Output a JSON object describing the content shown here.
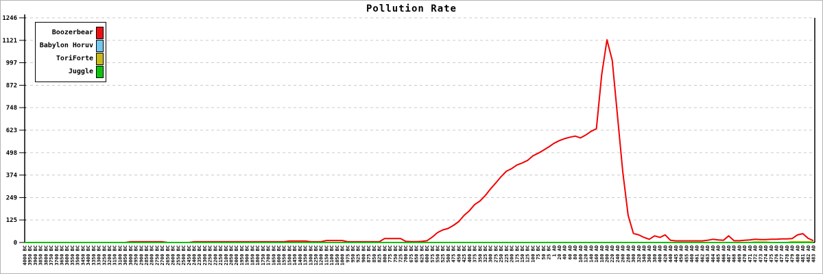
{
  "title": "Pollution Rate",
  "legend": {
    "items": [
      {
        "label": "Boozerbear",
        "color": "#ee1010"
      },
      {
        "label": "Babylon Horuv",
        "color": "#74c7f0"
      },
      {
        "label": "ToriForte",
        "color": "#c9b918"
      },
      {
        "label": "Juggle",
        "color": "#0cc40c"
      }
    ]
  },
  "chart_data": {
    "type": "line",
    "title": "Pollution Rate",
    "xlabel": "",
    "ylabel": "",
    "ylim": [
      0,
      1246
    ],
    "y_ticks": [
      0,
      125,
      249,
      374,
      498,
      623,
      748,
      872,
      997,
      1121,
      1246
    ],
    "grid": "horizontal-dashed",
    "legend_position": "top-left",
    "categories": [
      "4000 BC",
      "3950 BC",
      "3900 BC",
      "3850 BC",
      "3800 BC",
      "3750 BC",
      "3700 BC",
      "3650 BC",
      "3600 BC",
      "3550 BC",
      "3500 BC",
      "3450 BC",
      "3400 BC",
      "3350 BC",
      "3300 BC",
      "3250 BC",
      "3200 BC",
      "3150 BC",
      "3100 BC",
      "3050 BC",
      "3000 BC",
      "2950 BC",
      "2900 BC",
      "2850 BC",
      "2800 BC",
      "2750 BC",
      "2700 BC",
      "2650 BC",
      "2600 BC",
      "2550 BC",
      "2500 BC",
      "2450 BC",
      "2400 BC",
      "2350 BC",
      "2300 BC",
      "2250 BC",
      "2200 BC",
      "2150 BC",
      "2100 BC",
      "2050 BC",
      "2000 BC",
      "1950 BC",
      "1900 BC",
      "1850 BC",
      "1800 BC",
      "1750 BC",
      "1700 BC",
      "1650 BC",
      "1600 BC",
      "1550 BC",
      "1500 BC",
      "1450 BC",
      "1400 BC",
      "1350 BC",
      "1300 BC",
      "1250 BC",
      "1200 BC",
      "1150 BC",
      "1100 BC",
      "1050 BC",
      "1000 BC",
      "975 BC",
      "950 BC",
      "925 BC",
      "900 BC",
      "875 BC",
      "850 BC",
      "825 BC",
      "800 BC",
      "775 BC",
      "750 BC",
      "725 BC",
      "700 BC",
      "675 BC",
      "650 BC",
      "625 BC",
      "600 BC",
      "575 BC",
      "550 BC",
      "525 BC",
      "500 BC",
      "475 BC",
      "450 BC",
      "425 BC",
      "400 BC",
      "375 BC",
      "350 BC",
      "325 BC",
      "300 BC",
      "275 BC",
      "250 BC",
      "225 BC",
      "200 BC",
      "175 BC",
      "150 BC",
      "125 BC",
      "100 BC",
      "75 BC",
      "50 BC",
      "25 BC",
      "1 AD",
      "20 AD",
      "40 AD",
      "60 AD",
      "80 AD",
      "100 AD",
      "120 AD",
      "140 AD",
      "160 AD",
      "180 AD",
      "200 AD",
      "220 AD",
      "240 AD",
      "260 AD",
      "280 AD",
      "300 AD",
      "320 AD",
      "340 AD",
      "360 AD",
      "380 AD",
      "400 AD",
      "420 AD",
      "440 AD",
      "445 AD",
      "450 AD",
      "455 AD",
      "460 AD",
      "461 AD",
      "462 AD",
      "463 AD",
      "464 AD",
      "465 AD",
      "466 AD",
      "467 AD",
      "468 AD",
      "469 AD",
      "470 AD",
      "471 AD",
      "472 AD",
      "473 AD",
      "474 AD",
      "475 AD",
      "476 AD",
      "477 AD",
      "478 AD",
      "479 AD",
      "480 AD",
      "481 AD",
      "482 AD",
      "483 AD"
    ],
    "series": [
      {
        "name": "Boozerbear",
        "color": "#f20000",
        "values": [
          0,
          0,
          0,
          0,
          0,
          0,
          0,
          0,
          0,
          0,
          0,
          0,
          0,
          0,
          0,
          0,
          0,
          0,
          0,
          0,
          4,
          4,
          4,
          4,
          4,
          4,
          4,
          0,
          0,
          0,
          0,
          0,
          4,
          4,
          4,
          4,
          4,
          4,
          4,
          4,
          4,
          4,
          4,
          4,
          4,
          4,
          4,
          4,
          4,
          4,
          8,
          8,
          8,
          8,
          4,
          4,
          4,
          11,
          11,
          11,
          11,
          4,
          4,
          4,
          4,
          4,
          4,
          4,
          22,
          22,
          22,
          22,
          6,
          5,
          5,
          6,
          10,
          30,
          55,
          70,
          78,
          95,
          116,
          150,
          176,
          210,
          230,
          260,
          297,
          330,
          365,
          395,
          410,
          430,
          441,
          455,
          480,
          495,
          512,
          530,
          550,
          565,
          576,
          584,
          590,
          580,
          596,
          616,
          631,
          930,
          1124,
          1010,
          700,
          390,
          150,
          50,
          42,
          28,
          18,
          37,
          28,
          42,
          12,
          9,
          9,
          9,
          9,
          9,
          9,
          12,
          18,
          14,
          12,
          37,
          10,
          10,
          12,
          14,
          18,
          16,
          16,
          18,
          18,
          20,
          20,
          22,
          42,
          49,
          23,
          10
        ]
      },
      {
        "name": "Babylon Horuv",
        "color": "#74c7f0",
        "values": [
          0,
          0,
          0,
          0,
          0,
          0,
          0,
          0,
          0,
          0,
          0,
          0,
          0,
          0,
          0,
          0,
          0,
          0,
          0,
          0,
          0,
          0,
          0,
          0,
          0,
          0,
          0,
          0,
          0,
          0,
          0,
          0,
          0,
          0,
          0,
          0,
          0,
          0,
          0,
          0,
          0,
          0,
          0,
          0,
          0,
          0,
          0,
          0,
          0,
          0,
          0,
          0,
          0,
          0,
          0,
          0,
          0,
          0,
          0,
          0,
          0,
          0,
          0,
          0,
          0,
          0,
          0,
          0,
          0,
          0,
          0,
          0,
          0,
          0,
          0,
          0,
          0,
          0,
          0,
          0,
          0,
          0,
          0,
          0,
          0,
          0,
          0,
          0,
          0,
          0,
          0,
          0,
          0,
          0,
          0,
          0,
          0,
          0,
          0,
          0,
          0,
          0,
          0,
          0,
          0,
          0,
          0,
          0,
          0,
          0,
          0,
          0,
          0,
          0,
          0,
          0,
          0,
          0,
          0,
          0,
          0,
          0,
          0,
          0,
          0,
          0,
          0,
          0,
          0,
          0,
          0,
          0,
          0,
          0,
          0,
          0,
          0,
          0,
          0,
          0,
          0,
          0,
          0,
          0,
          0,
          0,
          0,
          0,
          0,
          0
        ]
      },
      {
        "name": "ToriForte",
        "color": "#c9b918",
        "values": [
          0,
          0,
          0,
          0,
          0,
          0,
          0,
          0,
          0,
          0,
          0,
          0,
          0,
          0,
          0,
          0,
          0,
          0,
          0,
          0,
          0,
          0,
          0,
          0,
          0,
          0,
          0,
          0,
          0,
          0,
          0,
          0,
          0,
          0,
          0,
          0,
          0,
          0,
          0,
          0,
          0,
          0,
          0,
          0,
          0,
          0,
          0,
          0,
          0,
          0,
          0,
          0,
          0,
          0,
          0,
          0,
          0,
          0,
          0,
          0,
          0,
          0,
          0,
          0,
          0,
          0,
          0,
          0,
          0,
          0,
          0,
          0,
          0,
          0,
          0,
          0,
          0,
          0,
          0,
          0,
          0,
          0,
          0,
          0,
          0,
          0,
          0,
          0,
          0,
          0,
          0,
          0,
          0,
          0,
          0,
          0,
          0,
          0,
          0,
          0,
          0,
          0,
          0,
          0,
          0,
          0,
          0,
          0,
          0,
          0,
          0,
          0,
          0,
          0,
          0,
          0,
          0,
          0,
          0,
          0,
          0,
          0,
          0,
          0,
          0,
          0,
          0,
          0,
          0,
          0,
          0,
          0,
          0,
          0,
          0,
          0,
          0,
          0,
          3,
          3,
          3,
          0,
          0,
          0,
          0,
          5,
          5,
          4,
          4,
          4
        ]
      },
      {
        "name": "Juggle",
        "color": "#00c300",
        "values": [
          0,
          0,
          0,
          0,
          0,
          0,
          0,
          0,
          0,
          0,
          0,
          0,
          0,
          0,
          0,
          0,
          0,
          0,
          0,
          0,
          0,
          0,
          0,
          0,
          0,
          0,
          0,
          0,
          0,
          0,
          0,
          0,
          0,
          0,
          0,
          0,
          0,
          0,
          0,
          0,
          0,
          0,
          0,
          0,
          0,
          0,
          0,
          0,
          0,
          0,
          0,
          0,
          0,
          0,
          0,
          0,
          0,
          0,
          0,
          0,
          0,
          0,
          0,
          0,
          0,
          0,
          0,
          0,
          0,
          0,
          0,
          0,
          0,
          0,
          0,
          0,
          0,
          0,
          0,
          0,
          0,
          0,
          0,
          0,
          0,
          0,
          0,
          0,
          0,
          0,
          0,
          0,
          0,
          0,
          0,
          0,
          0,
          0,
          0,
          0,
          0,
          0,
          0,
          0,
          0,
          0,
          0,
          0,
          0,
          0,
          0,
          0,
          0,
          0,
          0,
          0,
          0,
          0,
          0,
          0,
          0,
          0,
          0,
          0,
          0,
          0,
          0,
          0,
          0,
          0,
          0,
          0,
          0,
          0,
          0,
          0,
          0,
          0,
          0,
          0,
          0,
          0,
          0,
          0,
          0,
          0,
          0,
          0,
          0,
          0
        ]
      }
    ]
  }
}
